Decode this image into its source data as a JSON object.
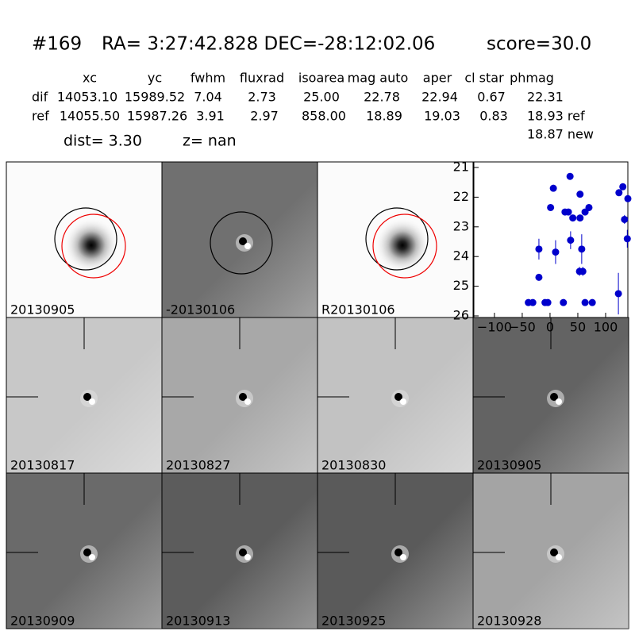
{
  "header": {
    "id": "#169",
    "coords": "RA= 3:27:42.828 DEC=-28:12:02.06",
    "score": "score=30.0"
  },
  "table": {
    "columns": [
      "xc",
      "yc",
      "fwhm",
      "fluxrad",
      "isoarea",
      "mag auto",
      "aper",
      "cl star",
      "phmag"
    ],
    "rows": [
      [
        "dif",
        "14053.10",
        "15989.52",
        "7.04",
        "2.73",
        "25.00",
        "22.78",
        "22.94",
        "0.67",
        "22.31"
      ],
      [
        "ref",
        "14055.50",
        "15987.26",
        "3.91",
        "2.97",
        "858.00",
        "18.89",
        "19.03",
        "0.83",
        "18.93 ref"
      ]
    ],
    "note": "18.87 new"
  },
  "dist": "dist=  3.30",
  "z": "z=   nan",
  "panels": [
    {
      "label": "20130905"
    },
    {
      "label": "-20130106"
    },
    {
      "label": "R20130106"
    },
    {
      "label": "20130817"
    },
    {
      "label": "20130827"
    },
    {
      "label": "20130830"
    },
    {
      "label": "20130905",
      "color": "#ff0000"
    },
    {
      "label": "20130909"
    },
    {
      "label": "20130913"
    },
    {
      "label": "20130925"
    },
    {
      "label": "20130928"
    }
  ],
  "chart_data": {
    "type": "scatter",
    "color": "#0000cc",
    "x": [
      -39,
      -31,
      -20,
      -20,
      -9,
      -4,
      1,
      6,
      10,
      24,
      27,
      33,
      36,
      37,
      41,
      54,
      54,
      57,
      53,
      59,
      63,
      63,
      70,
      76,
      123,
      124,
      131,
      134,
      139,
      140
    ],
    "values": [
      25.55,
      25.55,
      23.75,
      24.7,
      25.55,
      25.55,
      22.35,
      21.7,
      23.85,
      25.55,
      22.5,
      22.5,
      21.3,
      23.45,
      22.7,
      21.9,
      22.7,
      23.75,
      24.5,
      24.5,
      25.55,
      22.5,
      22.35,
      25.55,
      25.25,
      21.85,
      21.65,
      22.75,
      23.4,
      22.05
    ],
    "errors": [
      0.05,
      0.05,
      0.35,
      0.1,
      0.05,
      0.05,
      0.05,
      0.05,
      0.4,
      0.05,
      0.08,
      0.08,
      0.05,
      0.3,
      0.1,
      0.05,
      0.1,
      0.5,
      0.15,
      0.15,
      0.05,
      0.08,
      0.05,
      0.05,
      0.7,
      0.05,
      0.05,
      0.15,
      0.3,
      0.05
    ],
    "xlim": [
      -137,
      140
    ],
    "ylim": [
      26,
      21
    ],
    "xticks": [
      {
        "value": -100,
        "label": "−100"
      },
      {
        "value": -50,
        "label": "−50"
      },
      0,
      50,
      100
    ],
    "yticks": [
      21,
      22,
      23,
      24,
      25,
      26
    ]
  }
}
